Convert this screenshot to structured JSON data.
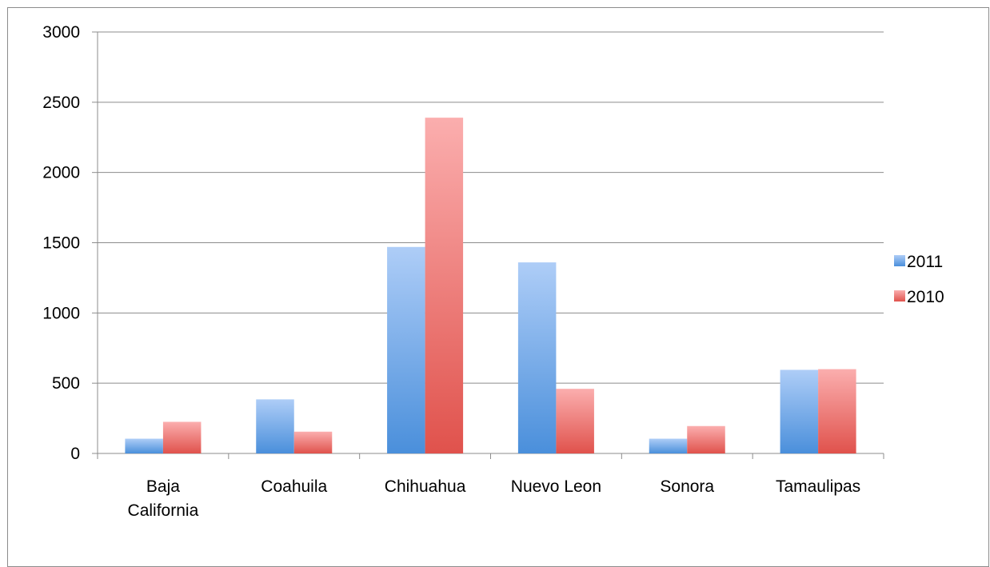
{
  "chart_data": {
    "type": "bar",
    "title": "",
    "xlabel": "",
    "ylabel": "",
    "categories": [
      [
        "Baja",
        "California"
      ],
      [
        "Coahuila"
      ],
      [
        "Chihuahua"
      ],
      [
        "Nuevo Leon"
      ],
      [
        "Sonora"
      ],
      [
        "Tamaulipas"
      ]
    ],
    "series": [
      {
        "name": "2011",
        "values": [
          105,
          385,
          1470,
          1360,
          105,
          595
        ],
        "color_top": "#aecdf7",
        "color_bottom": "#4a8fdb"
      },
      {
        "name": "2010",
        "values": [
          225,
          155,
          2390,
          460,
          195,
          600
        ],
        "color_top": "#fbaeae",
        "color_bottom": "#e0524c"
      }
    ],
    "ylim": [
      0,
      3000
    ],
    "yticks": [
      "0",
      "500",
      "1000",
      "1500",
      "2000",
      "2500",
      "3000"
    ],
    "grid": true,
    "legend_position": "right"
  }
}
